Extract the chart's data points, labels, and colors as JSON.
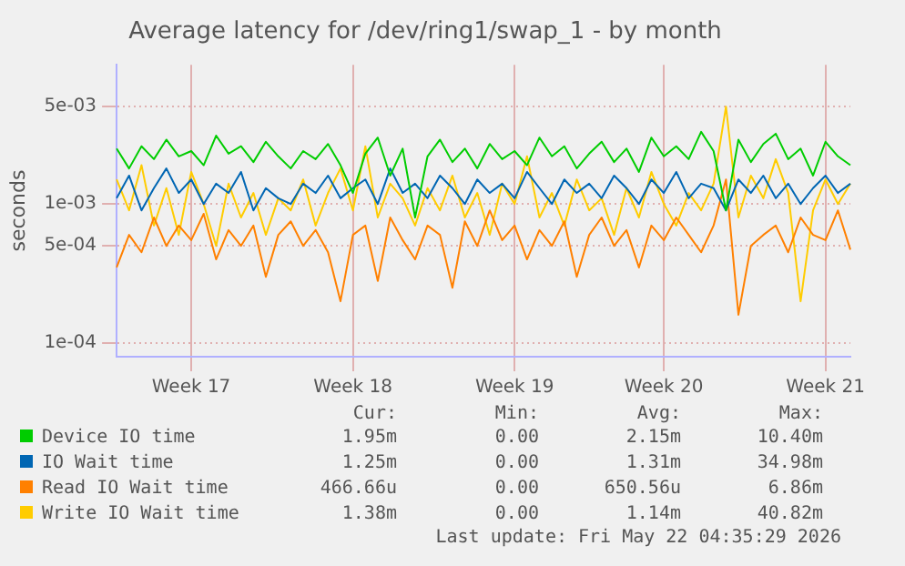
{
  "chart_data": {
    "type": "line",
    "title": "Average latency for /dev/ring1/swap_1 - by month",
    "ylabel": "seconds",
    "log": "y",
    "grid": true,
    "legend": "bottom",
    "marker": "none",
    "line_style": "solid",
    "categories": [
      null,
      null,
      null,
      null,
      null,
      null,
      "Week 17",
      null,
      null,
      null,
      null,
      null,
      null,
      null,
      null,
      null,
      null,
      null,
      null,
      "Week 18",
      null,
      null,
      null,
      null,
      null,
      null,
      null,
      null,
      null,
      null,
      null,
      null,
      "Week 19",
      null,
      null,
      null,
      null,
      null,
      null,
      null,
      null,
      null,
      null,
      null,
      "Week 20",
      null,
      null,
      null,
      null,
      null,
      null,
      null,
      null,
      null,
      null,
      null,
      null,
      "Week 21",
      null,
      null
    ],
    "ylim": [
      8e-05,
      0.01
    ],
    "yticks": [
      {
        "value": 0.0001,
        "label": "1e-04"
      },
      {
        "value": 0.0005,
        "label": "5e-04"
      },
      {
        "value": 0.001,
        "label": "1e-03"
      },
      {
        "value": 0.005,
        "label": "5e-03"
      }
    ],
    "series": [
      {
        "name": "Device IO time",
        "color": "#00cc00",
        "values": [
          0.0025,
          0.0018,
          0.0026,
          0.0021,
          0.0029,
          0.0022,
          0.0024,
          0.0019,
          0.0031,
          0.0023,
          0.0026,
          0.002,
          0.0028,
          0.0022,
          0.0018,
          0.0024,
          0.0021,
          0.0027,
          0.0019,
          0.0012,
          0.0023,
          0.003,
          0.0016,
          0.0025,
          0.0008,
          0.0022,
          0.0029,
          0.002,
          0.0025,
          0.0018,
          0.0027,
          0.0021,
          0.0024,
          0.0019,
          0.003,
          0.0022,
          0.0026,
          0.0018,
          0.0023,
          0.0028,
          0.002,
          0.0025,
          0.0017,
          0.003,
          0.0022,
          0.0026,
          0.0021,
          0.0033,
          0.0024,
          0.0009,
          0.0029,
          0.002,
          0.0027,
          0.0032,
          0.0021,
          0.0025,
          0.0016,
          0.0028,
          0.0022,
          0.0019
        ]
      },
      {
        "name": "IO Wait time",
        "color": "#0066b3",
        "values": [
          0.0011,
          0.0016,
          0.0009,
          0.0013,
          0.0018,
          0.0012,
          0.0015,
          0.001,
          0.0014,
          0.0012,
          0.0017,
          0.0009,
          0.0013,
          0.0011,
          0.001,
          0.0014,
          0.0012,
          0.0016,
          0.0011,
          0.0013,
          0.0015,
          0.001,
          0.0018,
          0.0012,
          0.0014,
          0.0011,
          0.0016,
          0.0013,
          0.001,
          0.0015,
          0.0012,
          0.0014,
          0.0011,
          0.0017,
          0.0013,
          0.001,
          0.0015,
          0.0012,
          0.0014,
          0.0011,
          0.0016,
          0.0013,
          0.001,
          0.0015,
          0.0012,
          0.0017,
          0.0011,
          0.0014,
          0.0013,
          0.0009,
          0.0015,
          0.0012,
          0.0016,
          0.0011,
          0.0014,
          0.001,
          0.0013,
          0.0016,
          0.0012,
          0.0014
        ]
      },
      {
        "name": "Read IO Wait time",
        "color": "#ff8000",
        "values": [
          0.00035,
          0.0006,
          0.00045,
          0.0008,
          0.0005,
          0.0007,
          0.00055,
          0.00085,
          0.0004,
          0.00065,
          0.0005,
          0.0007,
          0.0003,
          0.0006,
          0.00075,
          0.0005,
          0.00065,
          0.00045,
          0.0002,
          0.0006,
          0.0007,
          0.00028,
          0.0008,
          0.00055,
          0.0004,
          0.0007,
          0.0006,
          0.00025,
          0.00075,
          0.0005,
          0.0009,
          0.00055,
          0.0007,
          0.0004,
          0.00065,
          0.0005,
          0.00075,
          0.0003,
          0.0006,
          0.0008,
          0.0005,
          0.00065,
          0.00035,
          0.0007,
          0.00055,
          0.0008,
          0.0006,
          0.00045,
          0.0007,
          0.0015,
          0.00016,
          0.0005,
          0.0006,
          0.0007,
          0.00045,
          0.0008,
          0.0006,
          0.00055,
          0.0009,
          0.00047
        ]
      },
      {
        "name": "Write IO Wait time",
        "color": "#ffcc00",
        "values": [
          0.0015,
          0.0009,
          0.0019,
          0.0007,
          0.0013,
          0.0006,
          0.0017,
          0.001,
          0.0005,
          0.0014,
          0.0008,
          0.0012,
          0.0006,
          0.0011,
          0.0009,
          0.0015,
          0.0007,
          0.0012,
          0.0018,
          0.0009,
          0.0026,
          0.0008,
          0.0014,
          0.0011,
          0.0007,
          0.0013,
          0.0009,
          0.0016,
          0.0008,
          0.0012,
          0.0006,
          0.0014,
          0.001,
          0.0022,
          0.0008,
          0.0012,
          0.0007,
          0.0015,
          0.0009,
          0.0011,
          0.0006,
          0.0013,
          0.0008,
          0.0017,
          0.001,
          0.0007,
          0.0012,
          0.0009,
          0.0014,
          0.005,
          0.0008,
          0.0016,
          0.0011,
          0.0021,
          0.0012,
          0.0002,
          0.0009,
          0.0015,
          0.001,
          0.0014
        ]
      }
    ],
    "annotations": [
      "Cur:",
      "Min:",
      "Avg:",
      "Max:",
      "1.95m",
      "0.00",
      "2.15m",
      "10.40m",
      "1.25m",
      "0.00",
      "1.31m",
      "34.98m",
      "466.66u",
      "0.00",
      "650.56u",
      "6.86m",
      "1.38m",
      "0.00",
      "1.14m",
      "40.82m",
      "Last update: Fri May 22 04:35:29 2026"
    ]
  }
}
